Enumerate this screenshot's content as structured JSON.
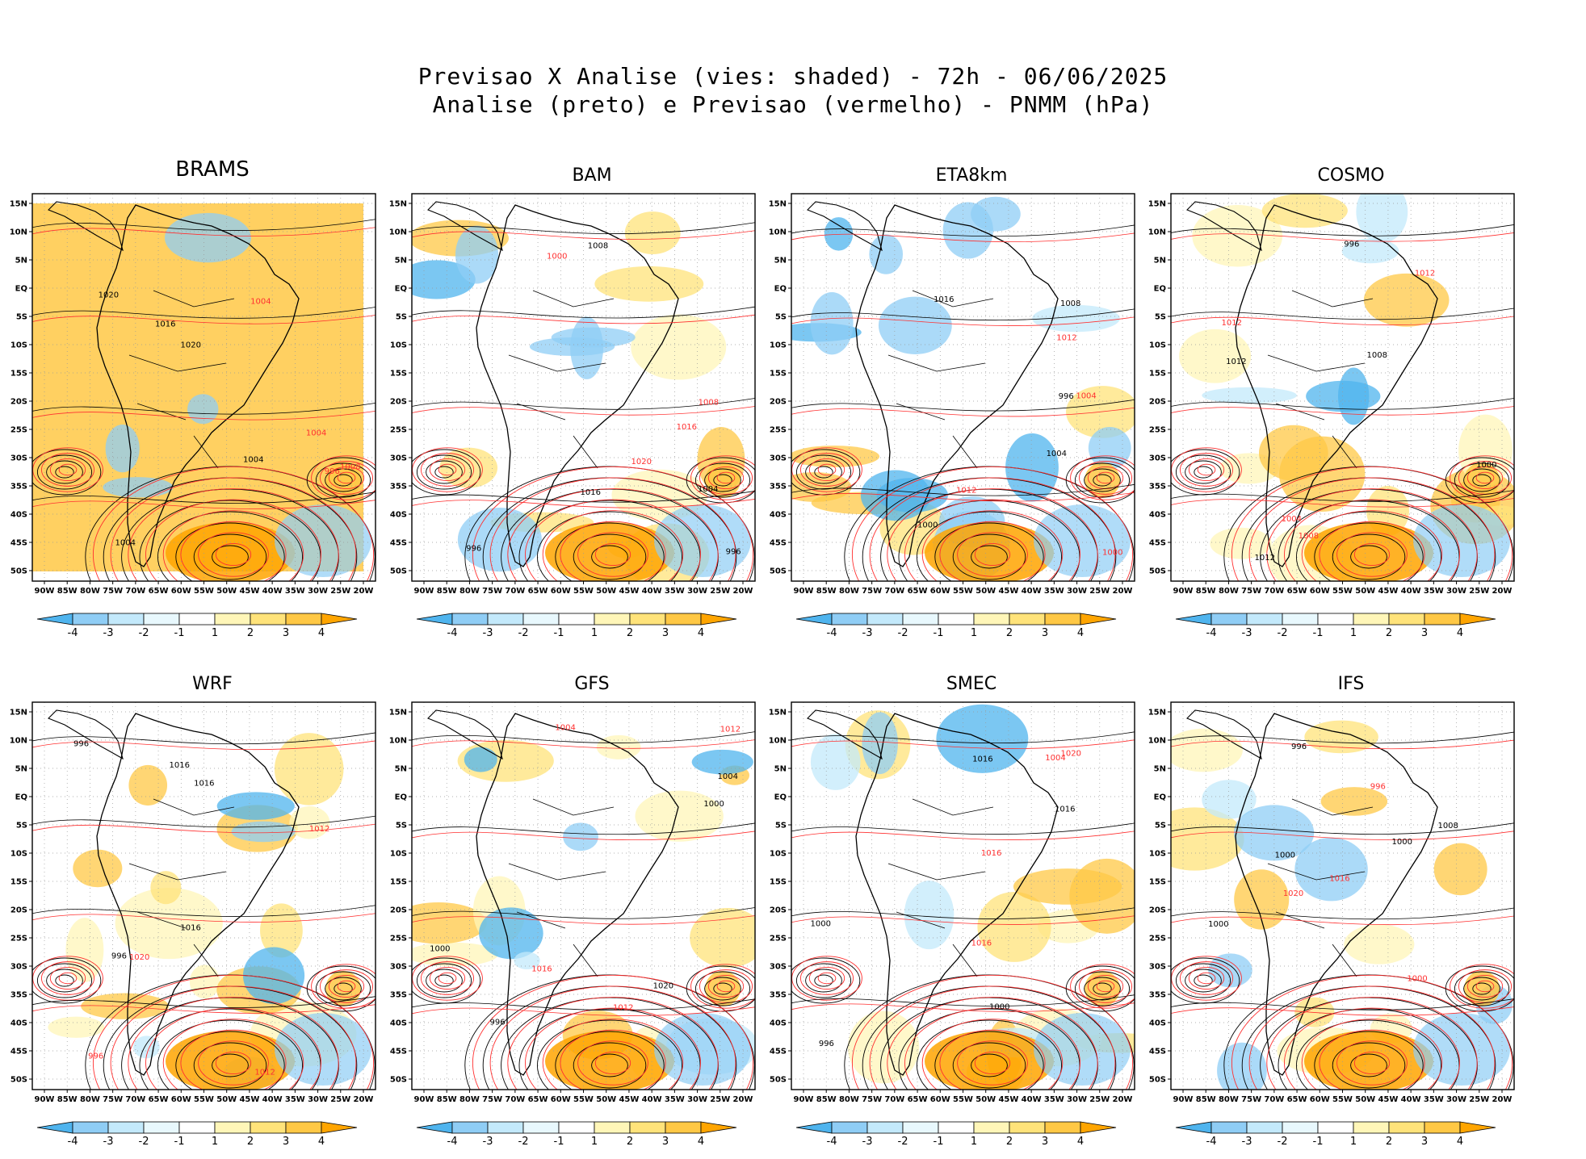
{
  "title_line1": "Previsao X Analise (vies: shaded) - 72h - 06/06/2025",
  "title_line2": "Analise (preto) e Previsao (vermelho) - PNMM (hPa)",
  "panels": [
    {
      "name": "BRAMS",
      "bias": "warm_strong"
    },
    {
      "name": "BAM",
      "bias": "mixed"
    },
    {
      "name": "ETA8km",
      "bias": "cold"
    },
    {
      "name": "COSMO",
      "bias": "mixed_warm"
    },
    {
      "name": "WRF",
      "bias": "mixed_warm"
    },
    {
      "name": "GFS",
      "bias": "mixed"
    },
    {
      "name": "SMEC",
      "bias": "mixed"
    },
    {
      "name": "IFS",
      "bias": "mixed"
    }
  ],
  "lat_labels": [
    "15N",
    "10N",
    "5N",
    "EQ",
    "5S",
    "10S",
    "15S",
    "20S",
    "25S",
    "30S",
    "35S",
    "40S",
    "45S",
    "50S"
  ],
  "lon_labels": [
    "90W",
    "85W",
    "80W",
    "75W",
    "70W",
    "65W",
    "60W",
    "55W",
    "50W",
    "45W",
    "40W",
    "35W",
    "30W",
    "25W",
    "20W"
  ],
  "colorbar": {
    "labels": [
      "-4",
      "-3",
      "-2",
      "-1",
      "1",
      "2",
      "3",
      "4"
    ],
    "colors": [
      "#4fb4ee",
      "#8fcdf5",
      "#c3e9fb",
      "#e8f8fd",
      "#ffffff",
      "#fff6b8",
      "#ffe37a",
      "#ffc845",
      "#ffa500"
    ]
  },
  "contour_labels": [
    "996",
    "1000",
    "1004",
    "1008",
    "1012",
    "1016",
    "1020"
  ],
  "colors": {
    "analysis": "#000000",
    "forecast": "#ff3030"
  }
}
